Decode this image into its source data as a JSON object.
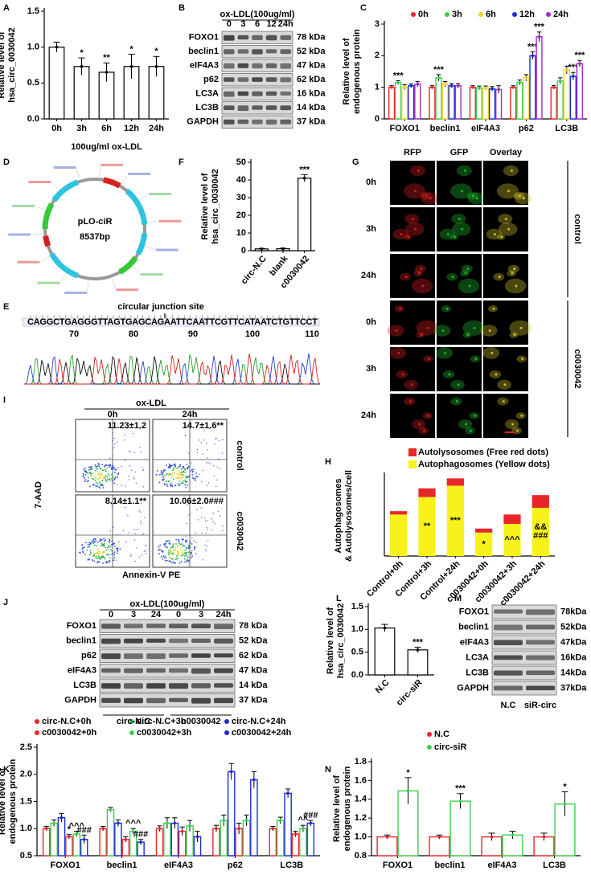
{
  "chart_data": [
    {
      "panel": "A",
      "type": "bar",
      "y_label": [
        "Relative level of",
        "hsa_circ_0030042"
      ],
      "x_label": "100ug/ml ox-LDL",
      "categories": [
        "0h",
        "3h",
        "6h",
        "12h",
        "24h"
      ],
      "values": [
        1.0,
        0.73,
        0.65,
        0.73,
        0.73
      ],
      "errors": [
        0.07,
        0.12,
        0.13,
        0.17,
        0.14
      ],
      "significance": [
        null,
        "*",
        "**",
        "*",
        "*"
      ],
      "color": "#ffffff",
      "ylim": [
        0,
        1.5
      ],
      "yticks": [
        {
          "value": 0,
          "label": "0.0"
        },
        {
          "value": 0.5,
          "label": "0.5"
        },
        {
          "value": 1,
          "label": "1.0"
        },
        {
          "value": 1.5,
          "label": "1.5"
        }
      ]
    },
    {
      "panel": "C",
      "type": "bar",
      "y_label": [
        "Relative level of",
        "endogenous protein"
      ],
      "categories": [
        "FOXO1",
        "beclin1",
        "eIF4A3",
        "p62",
        "LC3B"
      ],
      "series": [
        {
          "name": "0h",
          "color": "#e8262a",
          "values": [
            1.0,
            1.0,
            1.0,
            1.0,
            1.0
          ],
          "errors": [
            0.05,
            0.05,
            0.05,
            0.05,
            0.06
          ],
          "significance": [
            null,
            null,
            null,
            null,
            null
          ]
        },
        {
          "name": "3h",
          "color": "#3ccf4e",
          "values": [
            1.15,
            1.3,
            0.98,
            1.15,
            1.2
          ],
          "errors": [
            0.06,
            0.1,
            0.06,
            0.08,
            0.1
          ],
          "significance": [
            "***",
            "***",
            null,
            null,
            null
          ]
        },
        {
          "name": "6h",
          "color": "#f2d31b",
          "values": [
            1.0,
            1.1,
            0.98,
            1.3,
            1.55
          ],
          "errors": [
            0.08,
            0.08,
            0.06,
            0.1,
            0.12
          ],
          "significance": [
            null,
            null,
            null,
            null,
            null
          ]
        },
        {
          "name": "12h",
          "color": "#1c2bd6",
          "values": [
            1.05,
            1.05,
            0.95,
            2.0,
            1.35
          ],
          "errors": [
            0.06,
            0.07,
            0.07,
            0.12,
            0.12
          ],
          "significance": [
            null,
            null,
            null,
            "***",
            "***"
          ]
        },
        {
          "name": "24h",
          "color": "#a02bc9",
          "values": [
            1.1,
            1.05,
            0.93,
            2.6,
            1.75
          ],
          "errors": [
            0.08,
            0.07,
            0.12,
            0.15,
            0.1
          ],
          "significance": [
            null,
            null,
            null,
            "***",
            "***"
          ]
        }
      ],
      "ylim": [
        0,
        3
      ],
      "yticks": [
        0,
        1,
        2,
        3
      ]
    },
    {
      "panel": "F",
      "type": "bar",
      "y_label": [
        "Relative level of",
        "hsa_circ_0030042"
      ],
      "categories": [
        "circ-N.C",
        "blank",
        "c0030042"
      ],
      "values": [
        1.0,
        1.1,
        41
      ],
      "errors": [
        0.3,
        0.3,
        2.0
      ],
      "significance": [
        null,
        null,
        "***"
      ],
      "color": "#ffffff",
      "ylim": [
        0,
        50
      ],
      "yticks": [
        0,
        10,
        20,
        30,
        40,
        50
      ]
    },
    {
      "panel": "H",
      "type": "bar",
      "stacked": true,
      "y_label": [
        "Autophagosomes",
        "& Autolysosomes/cell"
      ],
      "categories": [
        "Control+0h",
        "Control+3h",
        "Control+24h",
        "c0030042+0h",
        "c0030042+3h",
        "c0030042+24h"
      ],
      "series": [
        {
          "name": "Autophagosomes (Yellow dots)",
          "color": "#f7f21c",
          "values": [
            6.2,
            8.8,
            10.5,
            3.5,
            4.8,
            7.2
          ],
          "significance": [
            null,
            "**",
            "***",
            "*",
            "^^^",
            [
              "&&",
              "###"
            ]
          ]
        },
        {
          "name": "Autolysosomes (Free red dots)",
          "color": "#e8262a",
          "values": [
            0.5,
            1.3,
            1.1,
            0.6,
            1.4,
            1.9
          ]
        }
      ],
      "ylim": [
        0,
        12
      ]
    },
    {
      "panel": "K",
      "type": "bar",
      "y_label": [
        "Relative level of",
        "endogenous protein"
      ],
      "categories": [
        "FOXO1",
        "beclin1",
        "eIF4A3",
        "p62",
        "LC3B"
      ],
      "series": [
        {
          "name": "circ-N.C+0h",
          "color": "#e8262a",
          "values": [
            1.0,
            1.0,
            1.0,
            1.0,
            1.0
          ],
          "errors": [
            0.04,
            0.04,
            0.05,
            0.06,
            0.04
          ],
          "significance": [
            null,
            null,
            null,
            null,
            null
          ]
        },
        {
          "name": "circ-N.C+3h",
          "color": "#3ccf4e",
          "values": [
            1.1,
            1.35,
            1.1,
            1.15,
            1.15
          ],
          "errors": [
            0.06,
            0.04,
            0.1,
            0.1,
            0.06
          ],
          "significance": [
            null,
            null,
            null,
            null,
            null
          ]
        },
        {
          "name": "circ-N.C+24h",
          "color": "#1c2bd6",
          "values": [
            1.2,
            1.1,
            1.1,
            2.05,
            1.65
          ],
          "errors": [
            0.08,
            0.06,
            0.1,
            0.15,
            0.08
          ],
          "significance": [
            null,
            null,
            null,
            null,
            null
          ]
        },
        {
          "name": "c0030042+0h",
          "color": "#e8262a",
          "values": [
            0.85,
            0.8,
            0.95,
            1.0,
            0.9
          ],
          "errors": [
            0.04,
            0.05,
            0.08,
            0.1,
            0.05
          ],
          "significance": [
            "*",
            null,
            null,
            null,
            null
          ]
        },
        {
          "name": "c0030042+3h",
          "color": "#3ccf4e",
          "values": [
            0.9,
            0.95,
            1.05,
            1.15,
            1.0
          ],
          "errors": [
            0.05,
            0.05,
            0.1,
            0.1,
            0.06
          ],
          "significance": [
            "^^^",
            "^^^",
            null,
            null,
            "^^"
          ]
        },
        {
          "name": "c0030042+24h",
          "color": "#1c2bd6",
          "values": [
            0.8,
            0.75,
            0.85,
            1.9,
            1.1
          ],
          "errors": [
            0.08,
            0.05,
            0.1,
            0.15,
            0.05
          ],
          "significance": [
            "###",
            "###",
            null,
            null,
            "###"
          ]
        }
      ],
      "ylim": [
        0.5,
        2.5
      ],
      "yticks": [
        {
          "value": 0.5,
          "label": "0.5"
        },
        {
          "value": 1,
          "label": "1.0"
        },
        {
          "value": 1.5,
          "label": "1.5"
        },
        {
          "value": 2,
          "label": "2.0"
        },
        {
          "value": 2.5,
          "label": "2.5"
        }
      ]
    },
    {
      "panel": "L",
      "type": "bar",
      "y_label": [
        "Relative level of",
        "hsa_circ_0030042"
      ],
      "categories": [
        "N.C",
        "circ-siR"
      ],
      "values": [
        1.03,
        0.55
      ],
      "errors": [
        0.08,
        0.06
      ],
      "significance": [
        null,
        "***"
      ],
      "color": "#ffffff",
      "ylim": [
        0,
        1.5
      ],
      "yticks": [
        {
          "value": 0,
          "label": "0.0"
        },
        {
          "value": 0.5,
          "label": "0.5"
        },
        {
          "value": 1,
          "label": "1.0"
        },
        {
          "value": 1.5,
          "label": "1.5"
        }
      ]
    },
    {
      "panel": "N",
      "type": "bar",
      "y_label": [
        "Relative level of",
        "endogenous protein"
      ],
      "categories": [
        "FOXO1",
        "beclin1",
        "eIF4A3",
        "LC3B"
      ],
      "series": [
        {
          "name": "N.C",
          "color": "#e8262a",
          "values": [
            1.0,
            1.0,
            1.0,
            1.0
          ],
          "errors": [
            0.02,
            0.02,
            0.04,
            0.04
          ],
          "significance": [
            null,
            null,
            null,
            null
          ]
        },
        {
          "name": "circ-siR",
          "color": "#3ccf4e",
          "values": [
            1.49,
            1.38,
            1.02,
            1.35
          ],
          "errors": [
            0.14,
            0.08,
            0.04,
            0.13
          ],
          "significance": [
            "*",
            "***",
            null,
            "*"
          ]
        }
      ],
      "ylim": [
        0.8,
        1.8
      ],
      "yticks": [
        {
          "value": 0.8,
          "label": "0.8"
        },
        {
          "value": 1,
          "label": "1.0"
        },
        {
          "value": 1.2,
          "label": "1.2"
        },
        {
          "value": 1.4,
          "label": "1.4"
        },
        {
          "value": 1.6,
          "label": "1.6"
        },
        {
          "value": 1.8,
          "label": "1.8"
        }
      ]
    }
  ],
  "blots": [
    {
      "panel": "B",
      "header": "ox-LDL(100ug/ml)",
      "lanes": [
        "0",
        "3",
        "6",
        "12",
        "24h"
      ],
      "proteins": [
        "FOXO1",
        "beclin1",
        "eIF4A3",
        "p62",
        "LC3A",
        "LC3B",
        "GAPDH"
      ],
      "sizes": [
        "78 kDa",
        "52 kDa",
        "47 kDa",
        "62 kDa",
        "16 kDa",
        "14 kDa",
        "37 kDa"
      ]
    },
    {
      "panel": "J",
      "header": "ox-LDL(100ug/ml)",
      "lanes": [
        "0",
        "3",
        "24",
        "0",
        "3",
        "24h"
      ],
      "proteins": [
        "FOXO1",
        "beclin1",
        "p62",
        "eIF4A3",
        "LC3B",
        "GAPDH"
      ],
      "sizes": [
        "78 kDa",
        "52 kDa",
        "62 kDa",
        "47 kDa",
        "14 kDa",
        "37 kDa"
      ],
      "groups": [
        "circ-N.C",
        "c0030042"
      ]
    },
    {
      "panel": "M",
      "lanes": [
        "N.C",
        "siR-circ"
      ],
      "proteins": [
        "FOXO1",
        "beclin1",
        "eIF4A3",
        "LC3A",
        "LC3B",
        "GAPDH"
      ],
      "sizes": [
        "78kDa",
        "52kDa",
        "47kDa",
        "16kDa",
        "14kDa",
        "37kDa"
      ]
    }
  ],
  "plasmid": {
    "panel": "D",
    "name": "pLO-ciR",
    "size": "8537bp"
  },
  "sequence": {
    "panel": "E",
    "title": "circular junction site",
    "bases": "CAGGCTGAGGGTTAGTGAGCAGAATTCAATTCGTTCATAATCTGTTCCT",
    "positions": [
      70,
      80,
      90,
      100,
      110
    ]
  },
  "microscopy": {
    "panel": "G",
    "columns": [
      "RFP",
      "GFP",
      "Overlay"
    ],
    "rows": [
      "0h",
      "3h",
      "24h",
      "0h",
      "3h",
      "24h"
    ],
    "groups": [
      "control",
      "c0030042"
    ]
  },
  "flow": {
    "panel": "I",
    "title": "ox-LDL",
    "columns": [
      "0h",
      "24h"
    ],
    "rows": [
      "control",
      "c0030042"
    ],
    "y_label": "7-AAD",
    "x_label": "Annexin-V  PE",
    "quadrant_values": [
      [
        "11.23±1.2",
        "14.7±1.6**"
      ],
      [
        "8.14±1.1**",
        "10.06±2.0###"
      ]
    ]
  }
}
